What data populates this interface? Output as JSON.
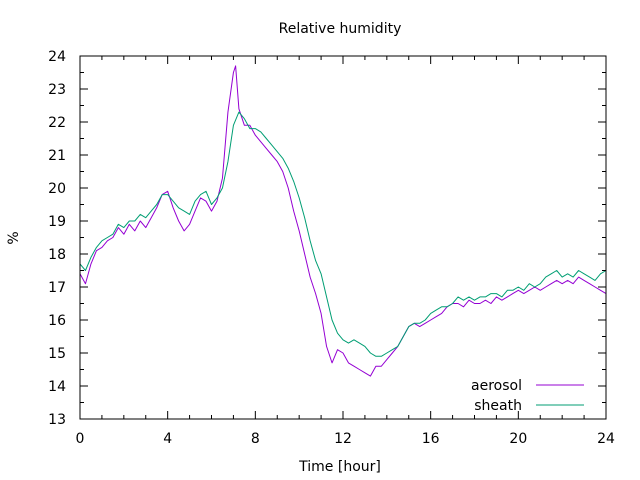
{
  "chart_data": {
    "type": "line",
    "title": "Relative humidity",
    "xlabel": "Time [hour]",
    "ylabel": "%",
    "xlim": [
      0,
      24
    ],
    "ylim": [
      13,
      24
    ],
    "x_ticks": [
      0,
      4,
      8,
      12,
      16,
      20,
      24
    ],
    "y_ticks": [
      13,
      14,
      15,
      16,
      17,
      18,
      19,
      20,
      21,
      22,
      23,
      24
    ],
    "x_minor_step": 1,
    "y_minor_step": 0.5,
    "grid": false,
    "legend_position": "bottom-right",
    "series": [
      {
        "name": "aerosol",
        "color": "#9400d3",
        "points": [
          [
            0,
            17.4
          ],
          [
            0.25,
            17.1
          ],
          [
            0.5,
            17.7
          ],
          [
            0.75,
            18.1
          ],
          [
            1,
            18.2
          ],
          [
            1.25,
            18.4
          ],
          [
            1.5,
            18.5
          ],
          [
            1.75,
            18.8
          ],
          [
            2,
            18.6
          ],
          [
            2.25,
            18.9
          ],
          [
            2.5,
            18.7
          ],
          [
            2.75,
            19.0
          ],
          [
            3,
            18.8
          ],
          [
            3.25,
            19.1
          ],
          [
            3.5,
            19.4
          ],
          [
            3.75,
            19.8
          ],
          [
            4,
            19.9
          ],
          [
            4.25,
            19.4
          ],
          [
            4.5,
            19.0
          ],
          [
            4.75,
            18.7
          ],
          [
            5,
            18.9
          ],
          [
            5.25,
            19.3
          ],
          [
            5.5,
            19.7
          ],
          [
            5.75,
            19.6
          ],
          [
            6,
            19.3
          ],
          [
            6.25,
            19.6
          ],
          [
            6.5,
            20.3
          ],
          [
            6.75,
            22.3
          ],
          [
            7,
            23.5
          ],
          [
            7.1,
            23.7
          ],
          [
            7.25,
            22.4
          ],
          [
            7.5,
            21.9
          ],
          [
            7.75,
            21.9
          ],
          [
            8,
            21.6
          ],
          [
            8.25,
            21.4
          ],
          [
            8.5,
            21.2
          ],
          [
            8.75,
            21.0
          ],
          [
            9,
            20.8
          ],
          [
            9.25,
            20.5
          ],
          [
            9.5,
            20.0
          ],
          [
            9.75,
            19.3
          ],
          [
            10,
            18.7
          ],
          [
            10.25,
            18.0
          ],
          [
            10.5,
            17.3
          ],
          [
            10.75,
            16.8
          ],
          [
            11,
            16.2
          ],
          [
            11.25,
            15.2
          ],
          [
            11.5,
            14.7
          ],
          [
            11.75,
            15.1
          ],
          [
            12,
            15.0
          ],
          [
            12.25,
            14.7
          ],
          [
            12.5,
            14.6
          ],
          [
            12.75,
            14.5
          ],
          [
            13,
            14.4
          ],
          [
            13.25,
            14.3
          ],
          [
            13.5,
            14.6
          ],
          [
            13.75,
            14.6
          ],
          [
            14,
            14.8
          ],
          [
            14.25,
            15.0
          ],
          [
            14.5,
            15.2
          ],
          [
            14.75,
            15.5
          ],
          [
            15,
            15.8
          ],
          [
            15.25,
            15.9
          ],
          [
            15.5,
            15.8
          ],
          [
            15.75,
            15.9
          ],
          [
            16,
            16.0
          ],
          [
            16.25,
            16.1
          ],
          [
            16.5,
            16.2
          ],
          [
            16.75,
            16.4
          ],
          [
            17,
            16.5
          ],
          [
            17.25,
            16.5
          ],
          [
            17.5,
            16.4
          ],
          [
            17.75,
            16.6
          ],
          [
            18,
            16.5
          ],
          [
            18.25,
            16.5
          ],
          [
            18.5,
            16.6
          ],
          [
            18.75,
            16.5
          ],
          [
            19,
            16.7
          ],
          [
            19.25,
            16.6
          ],
          [
            19.5,
            16.7
          ],
          [
            19.75,
            16.8
          ],
          [
            20,
            16.9
          ],
          [
            20.25,
            16.8
          ],
          [
            20.5,
            16.9
          ],
          [
            20.75,
            17.0
          ],
          [
            21,
            16.9
          ],
          [
            21.25,
            17.0
          ],
          [
            21.5,
            17.1
          ],
          [
            21.75,
            17.2
          ],
          [
            22,
            17.1
          ],
          [
            22.25,
            17.2
          ],
          [
            22.5,
            17.1
          ],
          [
            22.75,
            17.3
          ],
          [
            23,
            17.2
          ],
          [
            23.25,
            17.1
          ],
          [
            23.5,
            17.0
          ],
          [
            23.75,
            16.9
          ],
          [
            24,
            16.8
          ]
        ]
      },
      {
        "name": "sheath",
        "color": "#009e73",
        "points": [
          [
            0,
            17.7
          ],
          [
            0.25,
            17.5
          ],
          [
            0.5,
            17.9
          ],
          [
            0.75,
            18.2
          ],
          [
            1,
            18.4
          ],
          [
            1.25,
            18.5
          ],
          [
            1.5,
            18.6
          ],
          [
            1.75,
            18.9
          ],
          [
            2,
            18.8
          ],
          [
            2.25,
            19.0
          ],
          [
            2.5,
            19.0
          ],
          [
            2.75,
            19.2
          ],
          [
            3,
            19.1
          ],
          [
            3.25,
            19.3
          ],
          [
            3.5,
            19.5
          ],
          [
            3.75,
            19.8
          ],
          [
            4,
            19.8
          ],
          [
            4.25,
            19.6
          ],
          [
            4.5,
            19.4
          ],
          [
            4.75,
            19.3
          ],
          [
            5,
            19.2
          ],
          [
            5.25,
            19.6
          ],
          [
            5.5,
            19.8
          ],
          [
            5.75,
            19.9
          ],
          [
            6,
            19.5
          ],
          [
            6.25,
            19.7
          ],
          [
            6.5,
            20.0
          ],
          [
            6.75,
            20.8
          ],
          [
            7,
            21.9
          ],
          [
            7.25,
            22.3
          ],
          [
            7.5,
            22.1
          ],
          [
            7.75,
            21.8
          ],
          [
            8,
            21.8
          ],
          [
            8.25,
            21.7
          ],
          [
            8.5,
            21.5
          ],
          [
            8.75,
            21.3
          ],
          [
            9,
            21.1
          ],
          [
            9.25,
            20.9
          ],
          [
            9.5,
            20.6
          ],
          [
            9.75,
            20.2
          ],
          [
            10,
            19.7
          ],
          [
            10.25,
            19.1
          ],
          [
            10.5,
            18.4
          ],
          [
            10.75,
            17.8
          ],
          [
            11,
            17.4
          ],
          [
            11.25,
            16.7
          ],
          [
            11.5,
            16.0
          ],
          [
            11.75,
            15.6
          ],
          [
            12,
            15.4
          ],
          [
            12.25,
            15.3
          ],
          [
            12.5,
            15.4
          ],
          [
            12.75,
            15.3
          ],
          [
            13,
            15.2
          ],
          [
            13.25,
            15.0
          ],
          [
            13.5,
            14.9
          ],
          [
            13.75,
            14.9
          ],
          [
            14,
            15.0
          ],
          [
            14.25,
            15.1
          ],
          [
            14.5,
            15.2
          ],
          [
            14.75,
            15.5
          ],
          [
            15,
            15.8
          ],
          [
            15.25,
            15.9
          ],
          [
            15.5,
            15.9
          ],
          [
            15.75,
            16.0
          ],
          [
            16,
            16.2
          ],
          [
            16.25,
            16.3
          ],
          [
            16.5,
            16.4
          ],
          [
            16.75,
            16.4
          ],
          [
            17,
            16.5
          ],
          [
            17.25,
            16.7
          ],
          [
            17.5,
            16.6
          ],
          [
            17.75,
            16.7
          ],
          [
            18,
            16.6
          ],
          [
            18.25,
            16.7
          ],
          [
            18.5,
            16.7
          ],
          [
            18.75,
            16.8
          ],
          [
            19,
            16.8
          ],
          [
            19.25,
            16.7
          ],
          [
            19.5,
            16.9
          ],
          [
            19.75,
            16.9
          ],
          [
            20,
            17.0
          ],
          [
            20.25,
            16.9
          ],
          [
            20.5,
            17.1
          ],
          [
            20.75,
            17.0
          ],
          [
            21,
            17.1
          ],
          [
            21.25,
            17.3
          ],
          [
            21.5,
            17.4
          ],
          [
            21.75,
            17.5
          ],
          [
            22,
            17.3
          ],
          [
            22.25,
            17.4
          ],
          [
            22.5,
            17.3
          ],
          [
            22.75,
            17.5
          ],
          [
            23,
            17.4
          ],
          [
            23.25,
            17.3
          ],
          [
            23.5,
            17.2
          ],
          [
            23.75,
            17.4
          ],
          [
            24,
            17.5
          ]
        ]
      }
    ]
  }
}
